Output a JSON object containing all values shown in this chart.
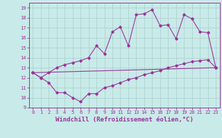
{
  "xlabel": "Windchill (Refroidissement éolien,°C)",
  "ylabel": "",
  "xlim": [
    -0.5,
    23.5
  ],
  "ylim": [
    9,
    19.5
  ],
  "yticks": [
    9,
    10,
    11,
    12,
    13,
    14,
    15,
    16,
    17,
    18,
    19
  ],
  "xticks": [
    0,
    1,
    2,
    3,
    4,
    5,
    6,
    7,
    8,
    9,
    10,
    11,
    12,
    13,
    14,
    15,
    16,
    17,
    18,
    19,
    20,
    21,
    22,
    23
  ],
  "bg_color": "#c8eae8",
  "grid_color": "#aacccc",
  "line_color": "#993399",
  "line1_x": [
    0,
    1,
    2,
    3,
    4,
    5,
    6,
    7,
    8,
    9,
    10,
    11,
    12,
    13,
    14,
    15,
    16,
    17,
    18,
    19,
    20,
    21,
    22,
    23
  ],
  "line1_y": [
    12.5,
    12.0,
    12.5,
    13.0,
    13.3,
    13.5,
    13.7,
    14.0,
    15.2,
    14.4,
    16.6,
    17.1,
    15.2,
    18.3,
    18.4,
    18.8,
    17.2,
    17.3,
    15.9,
    18.3,
    17.9,
    16.6,
    16.5,
    13.0
  ],
  "line2_x": [
    0,
    1,
    2,
    3,
    4,
    5,
    6,
    7,
    8,
    9,
    10,
    11,
    12,
    13,
    14,
    15,
    16,
    17,
    18,
    19,
    20,
    21,
    22,
    23
  ],
  "line2_y": [
    12.5,
    12.0,
    11.5,
    10.5,
    10.5,
    10.0,
    9.6,
    10.4,
    10.4,
    11.0,
    11.2,
    11.5,
    11.8,
    12.0,
    12.3,
    12.5,
    12.7,
    13.0,
    13.2,
    13.4,
    13.6,
    13.7,
    13.8,
    13.0
  ],
  "line3_x": [
    0,
    23
  ],
  "line3_y": [
    12.5,
    13.0
  ],
  "marker": "D",
  "markersize": 1.8,
  "linewidth": 0.8,
  "tick_fontsize": 5,
  "xlabel_fontsize": 6.5
}
